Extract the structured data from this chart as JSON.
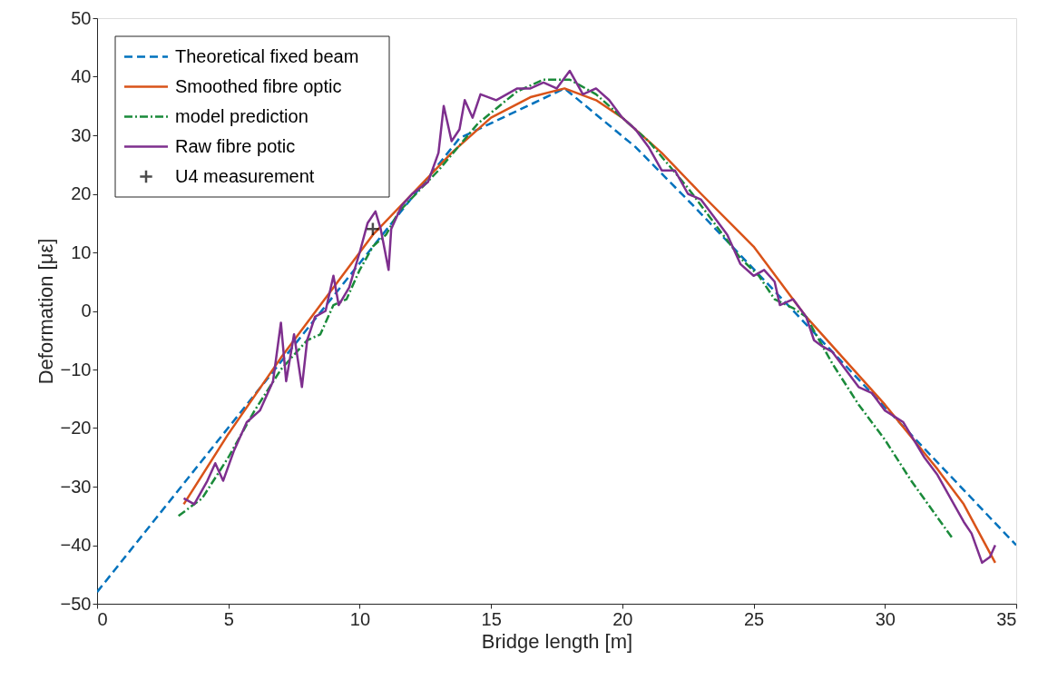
{
  "chart_data": {
    "type": "line",
    "xlabel": "Bridge length [m]",
    "ylabel": "Deformation [με]",
    "xlim": [
      0,
      35
    ],
    "ylim": [
      -50,
      50
    ],
    "xticks": [
      0,
      5,
      10,
      15,
      20,
      25,
      30,
      35
    ],
    "yticks": [
      -50,
      -40,
      -30,
      -20,
      -10,
      0,
      10,
      20,
      30,
      40,
      50
    ],
    "grid": false,
    "legend": "top left",
    "series": [
      {
        "name": "Theoretical fixed beam",
        "color": "#0072bd",
        "line_style": "dashed",
        "x": [
          0,
          13.8,
          17.8,
          20.5,
          22.7,
          35
        ],
        "values": [
          -48,
          29.5,
          38,
          28,
          18,
          -40
        ]
      },
      {
        "name": "Smoothed fibre optic",
        "color": "#d95319",
        "line_style": "solid",
        "x": [
          3.3,
          5,
          7,
          9,
          10.5,
          12,
          13.5,
          15,
          16.5,
          17.8,
          19,
          20,
          21.5,
          23,
          25,
          26,
          27,
          28,
          30,
          32,
          33,
          34.2
        ],
        "values": [
          -33,
          -21,
          -8,
          4,
          13,
          20,
          27,
          33,
          36.5,
          38,
          36,
          33,
          27,
          20,
          11,
          5,
          -1,
          -6,
          -16,
          -27,
          -33,
          -43
        ]
      },
      {
        "name": "model prediction",
        "color": "#1a8a3a",
        "line_style": "dashdot",
        "x": [
          3.1,
          4,
          5,
          6,
          7,
          8,
          8.5,
          9,
          9.5,
          10,
          10.5,
          11,
          11.5,
          13,
          14.5,
          16,
          17,
          18,
          19,
          20,
          21,
          22.5,
          24,
          24.5,
          25.2,
          25.8,
          26.5,
          27,
          28,
          29,
          30,
          31,
          32.6
        ],
        "values": [
          -35,
          -32,
          -25,
          -17,
          -10,
          -5,
          -4,
          1,
          2,
          7,
          11,
          13,
          17,
          24,
          32,
          37.5,
          39.5,
          39.5,
          37,
          33,
          29,
          21,
          12,
          9,
          6,
          2,
          0.5,
          -1,
          -9,
          -16,
          -22,
          -29,
          -39
        ]
      },
      {
        "name": "Raw fibre potic",
        "color": "#7e2f8e",
        "line_style": "solid",
        "x": [
          3.3,
          3.7,
          4.2,
          4.5,
          4.8,
          5.2,
          5.7,
          6.2,
          6.7,
          7,
          7.2,
          7.5,
          7.8,
          8,
          8.3,
          8.7,
          9,
          9.2,
          9.6,
          10,
          10.3,
          10.6,
          10.8,
          11.1,
          11.2,
          11.6,
          12,
          12.6,
          13,
          13.2,
          13.5,
          13.8,
          14,
          14.3,
          14.6,
          15.2,
          16,
          16.5,
          17,
          17.5,
          18,
          18.5,
          19,
          19.5,
          20,
          20.5,
          21,
          21.5,
          22,
          22.5,
          23,
          23.5,
          24,
          24.5,
          25,
          25.4,
          25.8,
          26,
          26.5,
          27,
          27.3,
          27.6,
          28,
          28.5,
          29,
          29.5,
          30,
          30.7,
          31.5,
          32,
          32.5,
          33,
          33.3,
          33.7,
          34,
          34.2
        ],
        "values": [
          -32,
          -33,
          -29,
          -26,
          -29,
          -24,
          -19,
          -17,
          -12,
          -2,
          -12,
          -4,
          -13,
          -5,
          -1,
          0,
          6,
          1,
          4,
          10,
          15,
          17,
          14,
          7,
          14,
          18,
          20,
          22,
          27,
          35,
          29,
          31,
          36,
          33,
          37,
          36,
          38,
          38,
          39,
          38,
          41,
          37,
          38,
          36,
          33,
          31,
          28,
          24,
          24,
          20,
          19,
          16,
          13,
          8,
          6,
          7,
          5,
          1,
          2,
          -1,
          -5,
          -6,
          -7,
          -10,
          -13,
          -14,
          -17,
          -19,
          -25,
          -28,
          -32,
          -36,
          -38,
          -43,
          -42,
          -40
        ]
      },
      {
        "name": "U4 measurement",
        "color": "#000000",
        "type": "scatter",
        "marker": "cross",
        "x": [
          10.5
        ],
        "values": [
          14
        ]
      }
    ]
  }
}
